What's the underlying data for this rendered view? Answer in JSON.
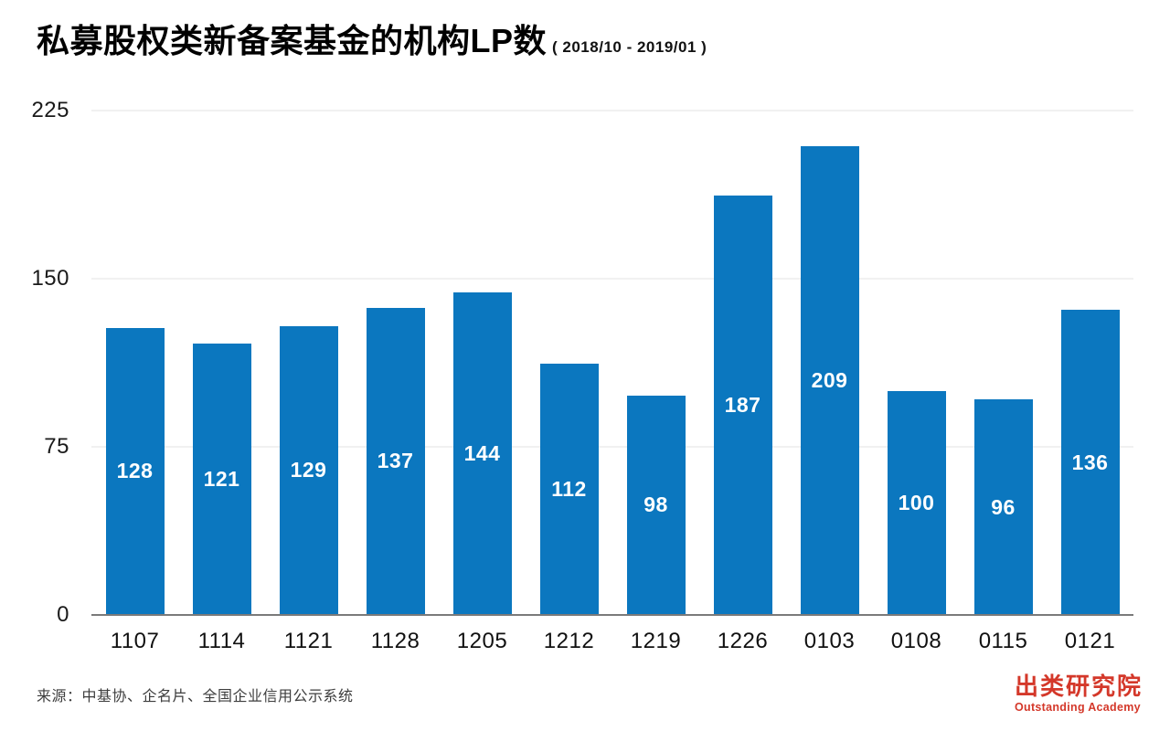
{
  "header": {
    "title": "私募股权类新备案基金的机构LP数",
    "subtitle": "( 2018/10 - 2019/01 )"
  },
  "chart_data": {
    "type": "bar",
    "title": "私募股权类新备案基金的机构LP数 ( 2018/10 - 2019/01 )",
    "categories": [
      "1107",
      "1114",
      "1121",
      "1128",
      "1205",
      "1212",
      "1219",
      "1226",
      "0103",
      "0108",
      "0115",
      "0121"
    ],
    "values": [
      128,
      121,
      129,
      137,
      144,
      112,
      98,
      187,
      209,
      100,
      96,
      136
    ],
    "xlabel": "",
    "ylabel": "",
    "ylim": [
      0,
      225
    ],
    "yticks": [
      0,
      75,
      150,
      225
    ],
    "grid": "horizontal-light",
    "legend": "none",
    "bar_color": "#0B77BF",
    "value_label_color": "#ffffff",
    "value_label_position": "center-of-bar"
  },
  "footer": {
    "source": "来源：中基协、企名片、全国企业信用公示系统",
    "logo_cn": "出类研究院",
    "logo_en": "Outstanding Academy",
    "logo_color": "#D4382A"
  }
}
